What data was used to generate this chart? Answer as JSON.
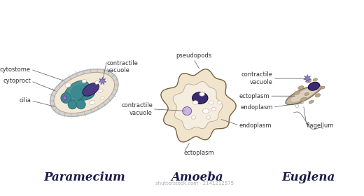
{
  "bg_color": "#ffffff",
  "title_paramecium": "Paramecium",
  "title_amoeba": "Amoeba",
  "title_euglena": "Euglena",
  "title_fontsize": 12,
  "label_fontsize": 6.0,
  "watermark": "shutterstock.com · 2141212575",
  "paramecium": {
    "body_color": "#f2e8d8",
    "outer_color": "#c0c0c0",
    "nucleus_color": "#4a3a82",
    "teal_color": "#3a8a90",
    "teal_dark": "#2a6a70",
    "star_color": "#9080c0",
    "line_color": "#888888"
  },
  "amoeba": {
    "body_color": "#f0e4cc",
    "ecto_color": "#e0c8a8",
    "nucleus_color": "#3a2a72",
    "vacuole_color": "#c8b8d8",
    "outline_color": "#7a6040"
  },
  "euglena": {
    "body_color": "#c8b89a",
    "inner_color": "#ddd0bc",
    "nucleus_color": "#3a2a72",
    "star_color": "#9080c0",
    "outline_color": "#7a6858"
  }
}
